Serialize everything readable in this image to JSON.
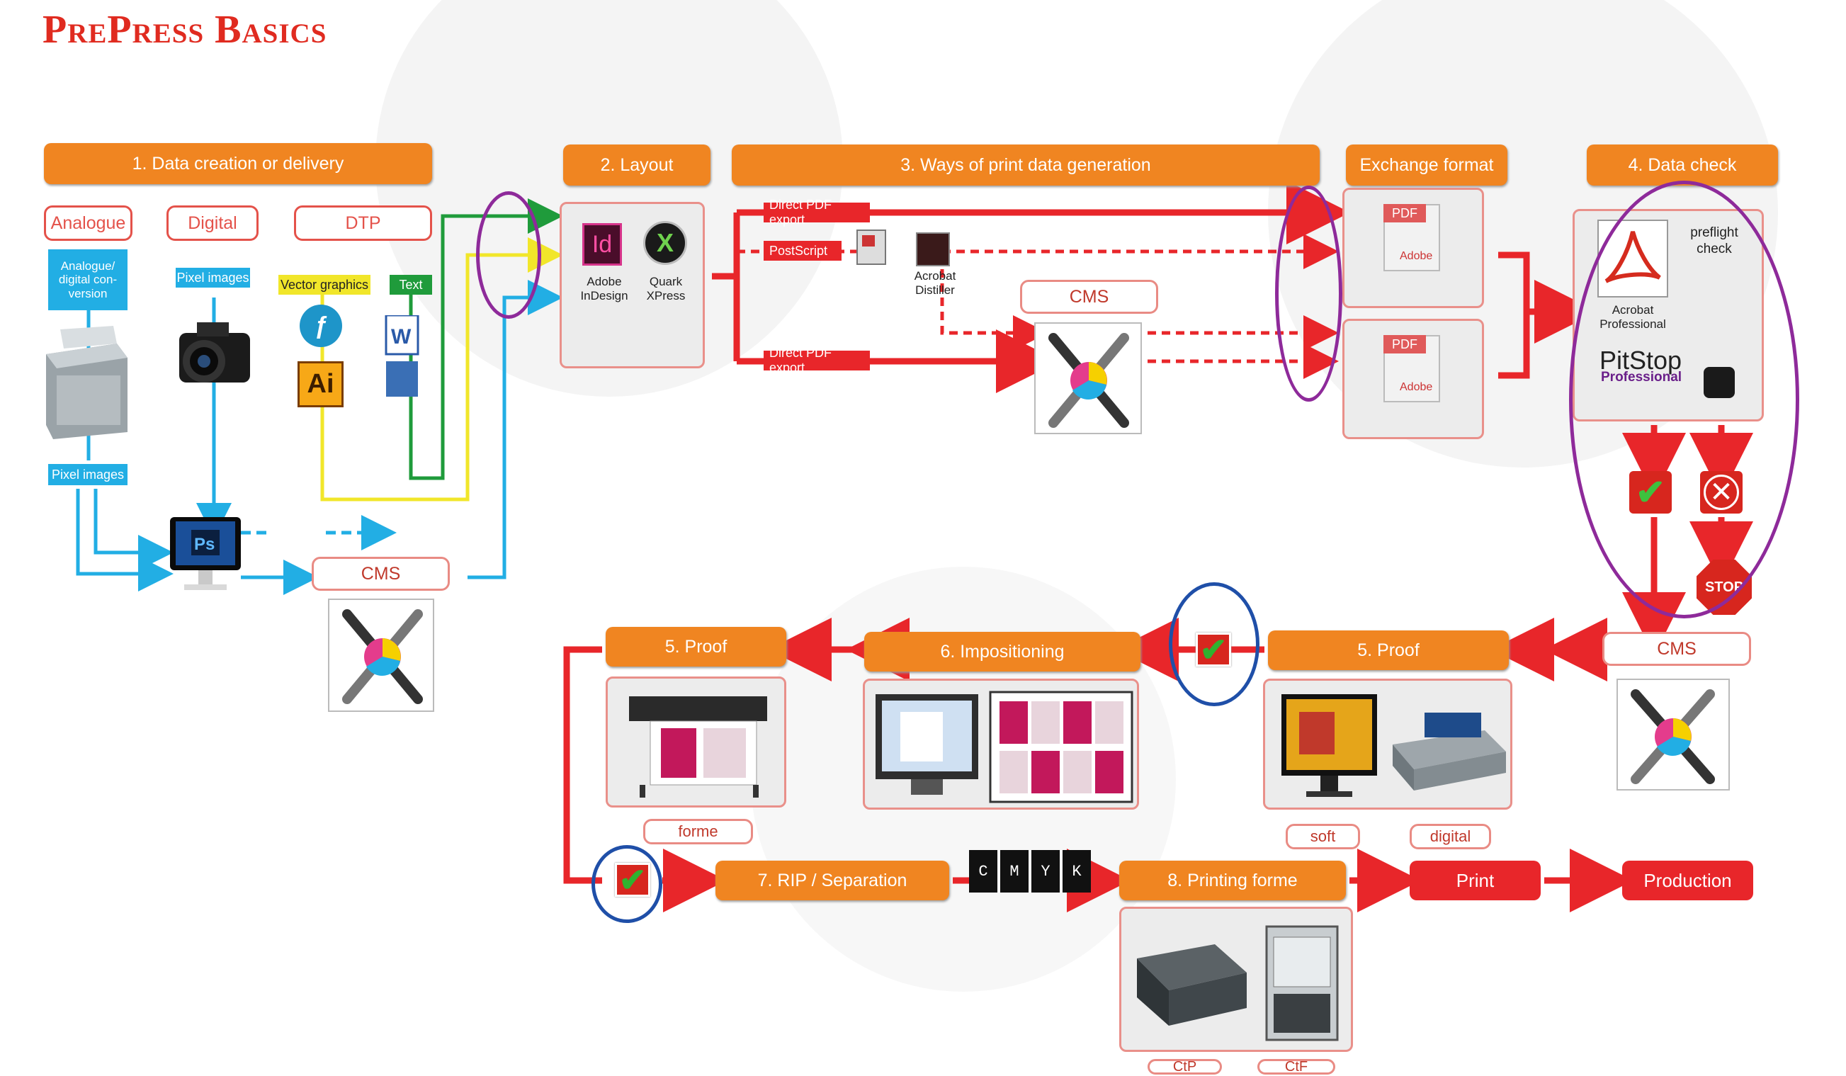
{
  "title": "PrePress Basics",
  "steps": {
    "step1": "1. Data creation or delivery",
    "step2": "2. Layout",
    "step3": "3. Ways of print data generation",
    "exchange": "Exchange format",
    "step4": "4. Data check",
    "step5_proof_right": "5. Proof",
    "step6": "6. Impositioning",
    "step5_proof_left": "5. Proof",
    "step7": "7. RIP / Separation",
    "step8": "8. Printing forme",
    "print": "Print",
    "production": "Production"
  },
  "sources": {
    "analogue": "Analogue",
    "digital": "Digital",
    "dtp": "DTP",
    "analogue_conversion": "Analogue/ digital con- version",
    "pixel_images_top": "Pixel images",
    "pixel_images_bottom": "Pixel images",
    "vector_graphics": "Vector graphics",
    "text": "Text"
  },
  "layout_apps": {
    "indesign": "Adobe InDesign",
    "quark": "Quark XPress",
    "indesign_icon": "Id",
    "quark_icon": "X"
  },
  "generation": {
    "direct_pdf_export_1": "Direct PDF export",
    "postscript": "PostScript",
    "acrobat_distiller": "Acrobat Distiller",
    "direct_pdf_export_2": "Direct PDF export"
  },
  "cms_labels": {
    "cms_left": "CMS",
    "cms_middle": "CMS",
    "cms_right": "CMS"
  },
  "data_check": {
    "acrobat_professional": "Acrobat Professional",
    "preflight_check": "preflight check",
    "pitstop": "PitStop",
    "pitstop_sub": "Professional",
    "stop": "STOP"
  },
  "pdf_label": "PDF",
  "adobe_label": "Adobe",
  "ai_icon": "Ai",
  "ps_icon": "Ps",
  "proof_right_labels": {
    "soft": "soft",
    "digital": "digital"
  },
  "proof_left_label": "forme",
  "printing_forme_labels": {
    "ctp": "CtP",
    "ctf": "CtF"
  },
  "cmyk_strip": [
    "C",
    "M",
    "Y",
    "K"
  ],
  "colors": {
    "orange": "#f08521",
    "red": "#e8262a",
    "blue": "#22aee4",
    "yellow": "#f1e62a",
    "green": "#1f9b3b",
    "purple_highlight": "#8e2a9a",
    "blue_highlight": "#1f4fa8"
  },
  "icons": [
    "indesign-icon",
    "quark-icon",
    "distiller-icon",
    "cms-tool-icon",
    "pdf-icon",
    "acrobat-icon",
    "pitstop-icon",
    "scanner-icon",
    "camera-icon",
    "photoshop-monitor-icon",
    "illustrator-icon",
    "freehand-icon",
    "word-icon",
    "check-icon",
    "cross-icon",
    "stop-sign-icon",
    "plotter-icon",
    "monitor-icon",
    "printer-icon",
    "ctp-device-icon",
    "ctf-device-icon"
  ]
}
